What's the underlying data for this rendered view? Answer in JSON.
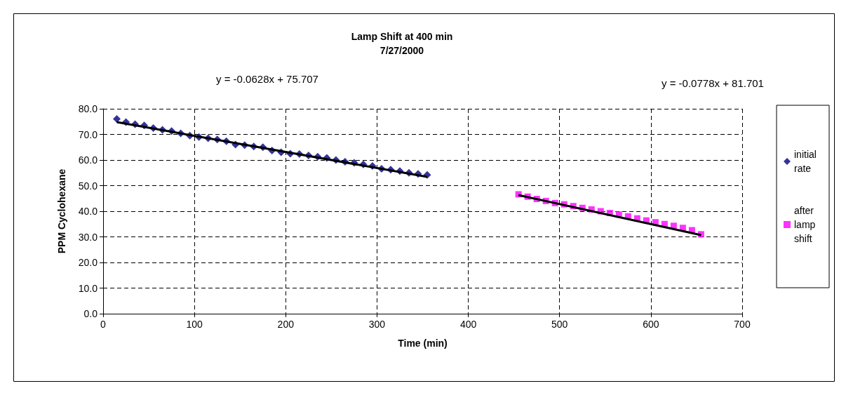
{
  "chart_data": {
    "type": "scatter",
    "title": "Lamp Shift at 400 min",
    "subtitle": "7/27/2000",
    "xlabel": "Time (min)",
    "ylabel": "PPM Cyclohexane",
    "xlim": [
      0,
      700
    ],
    "xticks": [
      0,
      100,
      200,
      300,
      400,
      500,
      600,
      700
    ],
    "ylim": [
      0,
      80
    ],
    "yticks": [
      {
        "value": 0,
        "label": "0.0"
      },
      {
        "value": 10,
        "label": "10.0"
      },
      {
        "value": 20,
        "label": "20.0"
      },
      {
        "value": 30,
        "label": "30.0"
      },
      {
        "value": 40,
        "label": "40.0"
      },
      {
        "value": 50,
        "label": "50.0"
      },
      {
        "value": 60,
        "label": "60.0"
      },
      {
        "value": 70,
        "label": "70.0"
      },
      {
        "value": 80,
        "label": "80.0"
      }
    ],
    "grid": true,
    "legend": "right",
    "annotations": [
      "y = -0.0628x + 75.707",
      "y = -0.0778x + 81.701"
    ],
    "series": [
      {
        "name": "initial rate",
        "color": "#000080",
        "marker": "diamond",
        "x": [
          15,
          25,
          35,
          45,
          55,
          65,
          75,
          85,
          95,
          105,
          115,
          125,
          135,
          145,
          155,
          165,
          175,
          185,
          195,
          205,
          215,
          225,
          235,
          245,
          255,
          265,
          275,
          285,
          295,
          305,
          315,
          325,
          335,
          345,
          355
        ],
        "values": [
          76.0,
          74.8,
          74.0,
          73.5,
          72.5,
          71.8,
          71.3,
          70.4,
          69.5,
          69.0,
          68.5,
          68.0,
          67.3,
          66.0,
          65.8,
          65.3,
          65.0,
          63.7,
          63.0,
          62.5,
          62.3,
          61.8,
          61.3,
          60.8,
          60.0,
          59.3,
          58.9,
          58.3,
          57.7,
          56.6,
          56.2,
          55.7,
          55.0,
          54.6,
          54.2
        ]
      },
      {
        "name": "after lamp shift",
        "color": "#ff00ff",
        "marker": "square",
        "x": [
          455,
          465,
          475,
          485,
          495,
          505,
          515,
          525,
          535,
          545,
          555,
          565,
          575,
          585,
          595,
          605,
          615,
          625,
          635,
          645,
          655
        ],
        "values": [
          46.6,
          45.7,
          44.8,
          44.0,
          43.2,
          42.7,
          42.0,
          41.3,
          40.7,
          40.0,
          39.3,
          38.7,
          38.0,
          37.2,
          36.4,
          35.7,
          35.0,
          34.3,
          33.5,
          32.6,
          31.0
        ]
      },
      {
        "type": "line",
        "color": "#000000",
        "marker": "none",
        "x": [
          15,
          355
        ],
        "values": [
          74.8,
          53.4
        ]
      },
      {
        "type": "line",
        "color": "#000000",
        "marker": "none",
        "x": [
          455,
          655
        ],
        "values": [
          46.3,
          30.7
        ]
      }
    ]
  }
}
